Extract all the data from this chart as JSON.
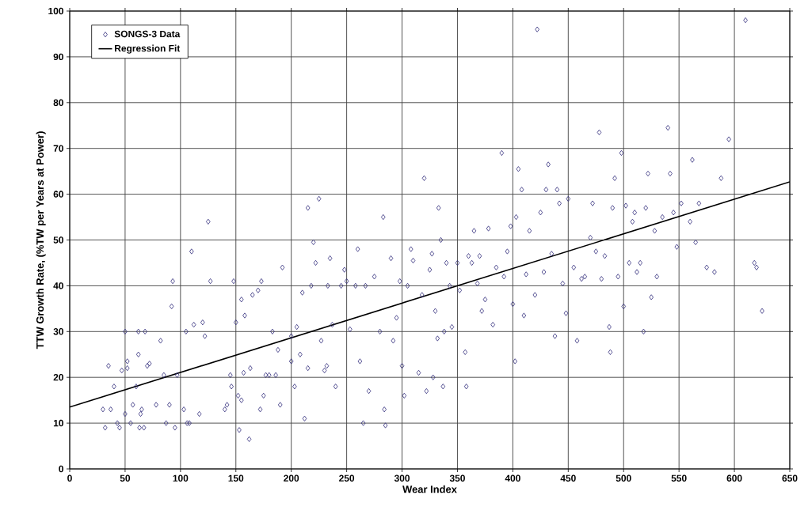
{
  "chart_data": {
    "type": "scatter",
    "xlabel": "Wear Index",
    "ylabel": "TTW Growth Rate, (%TW per Years at Power)",
    "xlim": [
      0,
      650
    ],
    "ylim": [
      0,
      100
    ],
    "xticks": [
      0,
      50,
      100,
      150,
      200,
      250,
      300,
      350,
      400,
      450,
      500,
      550,
      600,
      650
    ],
    "yticks": [
      0,
      10,
      20,
      30,
      40,
      50,
      60,
      70,
      80,
      90,
      100
    ],
    "grid": true,
    "legend": "top left",
    "series": [
      {
        "name": "SONGS-3 Data",
        "color": "#2e2a7a",
        "marker": "diamond",
        "x": [
          30,
          32,
          35,
          37,
          40,
          43,
          45,
          47,
          50,
          50,
          52,
          52,
          55,
          57,
          60,
          62,
          62,
          63,
          64,
          65,
          67,
          68,
          70,
          72,
          78,
          82,
          85,
          87,
          90,
          92,
          93,
          95,
          97,
          103,
          105,
          106,
          108,
          110,
          112,
          117,
          120,
          122,
          125,
          127,
          140,
          142,
          145,
          146,
          148,
          150,
          152,
          153,
          155,
          155,
          157,
          158,
          162,
          163,
          165,
          170,
          172,
          173,
          175,
          177,
          180,
          183,
          186,
          188,
          190,
          192,
          200,
          200,
          203,
          205,
          208,
          210,
          212,
          215,
          215,
          218,
          220,
          222,
          225,
          227,
          230,
          232,
          233,
          235,
          237,
          240,
          245,
          248,
          250,
          253,
          258,
          260,
          262,
          265,
          267,
          270,
          275,
          280,
          283,
          284,
          285,
          290,
          292,
          295,
          298,
          300,
          302,
          305,
          308,
          310,
          315,
          318,
          320,
          322,
          325,
          327,
          328,
          330,
          332,
          333,
          335,
          337,
          338,
          340,
          343,
          345,
          350,
          352,
          357,
          358,
          360,
          363,
          365,
          368,
          370,
          372,
          375,
          378,
          382,
          385,
          390,
          392,
          395,
          398,
          400,
          402,
          403,
          405,
          408,
          410,
          412,
          415,
          420,
          422,
          425,
          428,
          430,
          432,
          435,
          438,
          440,
          442,
          445,
          448,
          450,
          455,
          458,
          462,
          465,
          470,
          472,
          475,
          478,
          480,
          483,
          487,
          488,
          490,
          492,
          495,
          498,
          500,
          502,
          505,
          508,
          510,
          512,
          515,
          518,
          520,
          522,
          525,
          528,
          530,
          535,
          540,
          542,
          545,
          548,
          552,
          560,
          562,
          565,
          568,
          575,
          582,
          588,
          595,
          610,
          618,
          620,
          625
        ],
        "values": [
          13,
          9,
          22.5,
          13,
          18,
          10,
          9,
          21.5,
          12,
          30,
          22,
          23.5,
          10,
          14,
          18,
          25,
          30,
          9,
          12,
          13,
          9,
          30,
          22.5,
          23,
          14,
          28,
          20.5,
          10,
          14,
          35.5,
          41,
          9,
          20.5,
          13,
          30,
          10,
          10,
          47.5,
          31.5,
          12,
          32,
          29,
          54,
          41,
          13,
          14,
          20.5,
          18,
          41,
          32,
          16,
          8.5,
          37,
          15,
          21,
          33.5,
          6.5,
          22,
          38,
          39,
          13,
          41,
          16,
          20.5,
          20.5,
          30,
          20.5,
          26,
          14,
          44,
          29,
          23.5,
          18,
          31,
          25,
          38.5,
          11,
          57,
          22,
          40,
          49.5,
          45,
          59,
          28,
          21.5,
          22.5,
          40,
          46,
          31.5,
          18,
          40,
          43.5,
          41,
          30.5,
          40,
          48,
          23.5,
          10,
          40,
          17,
          42,
          30,
          55,
          13,
          9.5,
          46,
          28,
          33,
          41,
          22.5,
          16,
          40,
          48,
          45.5,
          21,
          38,
          63.5,
          17,
          43.5,
          47,
          20,
          34.5,
          28.5,
          57,
          50,
          18,
          30,
          45,
          40,
          31,
          45,
          39,
          25.5,
          18,
          46.5,
          45,
          52,
          40.5,
          46.5,
          34.5,
          37,
          52.5,
          31.5,
          44,
          69,
          42,
          47.5,
          53,
          36,
          23.5,
          55,
          65.5,
          61,
          33.5,
          42.5,
          52,
          38,
          96,
          56,
          43,
          61,
          66.5,
          47,
          29,
          61,
          58,
          40.5,
          34,
          59,
          44,
          28,
          41.5,
          42,
          50.5,
          58,
          47.5,
          73.5,
          41.5,
          46.5,
          31,
          25.5,
          57,
          63.5,
          42,
          69,
          35.5,
          57.5,
          45,
          54,
          56,
          43,
          45,
          30,
          57,
          64.5,
          37.5,
          52,
          42,
          55,
          74.5,
          64.5,
          56,
          48.5,
          58,
          54,
          67.5,
          49.5,
          58,
          44,
          43,
          63.5,
          72,
          98,
          45,
          44,
          34.5
        ]
      },
      {
        "name": "Regression Fit",
        "type": "line",
        "color": "#000000",
        "line_style": "solid",
        "marker": "none",
        "x": [
          0,
          650
        ],
        "values": [
          13.5,
          62.7
        ]
      }
    ]
  }
}
